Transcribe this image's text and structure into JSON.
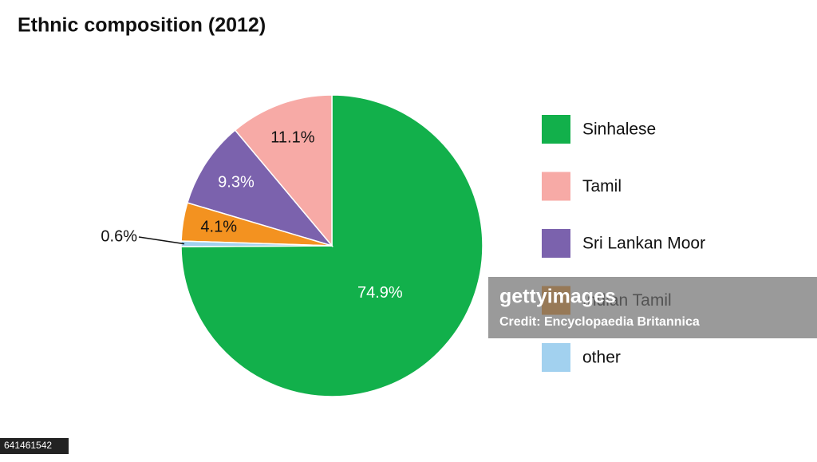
{
  "chart_data": {
    "type": "pie",
    "title": "Ethnic composition (2012)",
    "categories": [
      "Sinhalese",
      "Tamil",
      "Sri Lankan Moor",
      "Indian Tamil",
      "other"
    ],
    "values": [
      74.9,
      11.1,
      9.3,
      4.1,
      0.6
    ],
    "value_labels": [
      "74.9%",
      "11.1%",
      "9.3%",
      "4.1%",
      "0.6%"
    ],
    "colors": [
      "#12b04b",
      "#f7aaa6",
      "#7b62ad",
      "#f39220",
      "#a2d1ef"
    ],
    "legend": "right"
  },
  "watermark": {
    "logo": "gettyimages",
    "credit": "Credit: Encyclopaedia Britannica",
    "id": "641461542"
  }
}
